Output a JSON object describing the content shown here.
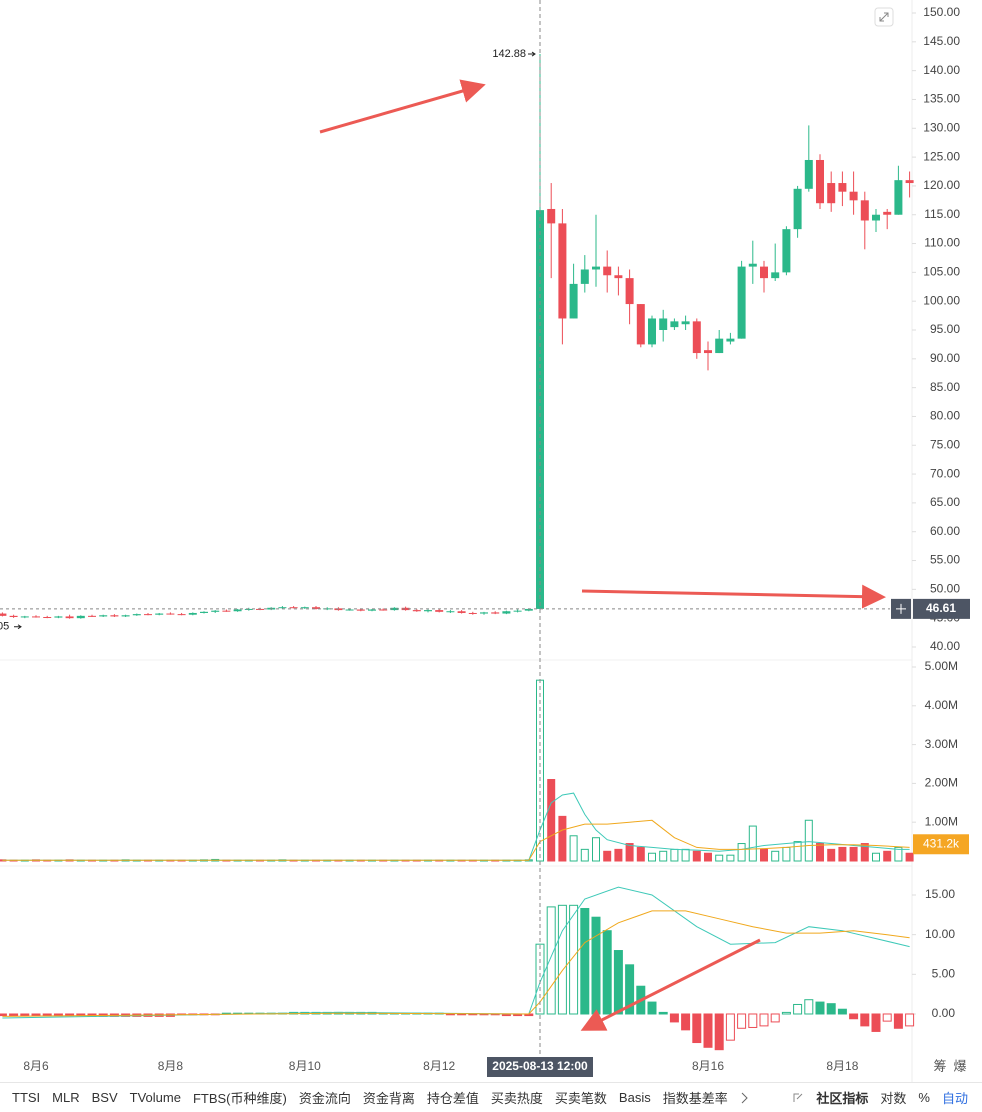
{
  "chart_data": [
    {
      "type": "candlestick",
      "up_color": "#2bb88a",
      "down_color": "#ec4d56",
      "ylim": [
        37.74,
        152.26
      ],
      "yticks": [
        {
          "value": 150,
          "label": "150.00"
        },
        {
          "value": 145,
          "label": "145.00"
        },
        {
          "value": 140,
          "label": "140.00"
        },
        {
          "value": 135,
          "label": "135.00"
        },
        {
          "value": 130,
          "label": "130.00"
        },
        {
          "value": 125,
          "label": "125.00"
        },
        {
          "value": 120,
          "label": "120.00"
        },
        {
          "value": 115,
          "label": "115.00"
        },
        {
          "value": 110,
          "label": "110.00"
        },
        {
          "value": 105,
          "label": "105.00"
        },
        {
          "value": 100,
          "label": "100.00"
        },
        {
          "value": 95,
          "label": "95.00"
        },
        {
          "value": 90,
          "label": "90.00"
        },
        {
          "value": 85,
          "label": "85.00"
        },
        {
          "value": 80,
          "label": "80.00"
        },
        {
          "value": 75,
          "label": "75.00"
        },
        {
          "value": 70,
          "label": "70.00"
        },
        {
          "value": 65,
          "label": "65.00"
        },
        {
          "value": 60,
          "label": "60.00"
        },
        {
          "value": 55,
          "label": "55.00"
        },
        {
          "value": 50,
          "label": "50.00"
        },
        {
          "value": 45,
          "label": "45.00"
        },
        {
          "value": 40,
          "label": "40.00"
        }
      ],
      "high": 142.88,
      "low_label": "05",
      "current_price": 46.61,
      "candles": [
        [
          45.8,
          46.0,
          45.3,
          45.4
        ],
        [
          45.4,
          45.6,
          45.05,
          45.2
        ],
        [
          45.2,
          45.4,
          45.0,
          45.3
        ],
        [
          45.3,
          45.5,
          45.1,
          45.2
        ],
        [
          45.2,
          45.4,
          45.0,
          45.1
        ],
        [
          45.1,
          45.4,
          45.0,
          45.3
        ],
        [
          45.3,
          45.6,
          44.9,
          45.0
        ],
        [
          45.0,
          45.5,
          44.9,
          45.4
        ],
        [
          45.4,
          45.6,
          45.2,
          45.3
        ],
        [
          45.3,
          45.6,
          45.2,
          45.5
        ],
        [
          45.5,
          45.7,
          45.2,
          45.3
        ],
        [
          45.3,
          45.6,
          45.2,
          45.5
        ],
        [
          45.5,
          45.8,
          45.4,
          45.7
        ],
        [
          45.7,
          45.9,
          45.5,
          45.6
        ],
        [
          45.6,
          45.9,
          45.5,
          45.8
        ],
        [
          45.8,
          46.0,
          45.6,
          45.7
        ],
        [
          45.7,
          45.9,
          45.5,
          45.6
        ],
        [
          45.6,
          46.0,
          45.5,
          45.9
        ],
        [
          45.9,
          46.2,
          45.8,
          46.1
        ],
        [
          46.1,
          46.4,
          45.9,
          46.3
        ],
        [
          46.3,
          46.5,
          46.1,
          46.2
        ],
        [
          46.2,
          46.6,
          46.1,
          46.5
        ],
        [
          46.5,
          46.8,
          46.3,
          46.6
        ],
        [
          46.6,
          46.8,
          46.4,
          46.5
        ],
        [
          46.5,
          46.9,
          46.4,
          46.8
        ],
        [
          46.8,
          47.1,
          46.6,
          46.9
        ],
        [
          46.9,
          47.1,
          46.7,
          46.8
        ],
        [
          46.8,
          47.0,
          46.6,
          46.9
        ],
        [
          46.9,
          47.1,
          46.5,
          46.6
        ],
        [
          46.6,
          46.9,
          46.4,
          46.7
        ],
        [
          46.7,
          46.9,
          46.3,
          46.4
        ],
        [
          46.4,
          46.7,
          46.3,
          46.5
        ],
        [
          46.5,
          46.7,
          46.2,
          46.3
        ],
        [
          46.3,
          46.6,
          46.2,
          46.5
        ],
        [
          46.5,
          46.7,
          46.3,
          46.4
        ],
        [
          46.4,
          46.9,
          46.3,
          46.8
        ],
        [
          46.8,
          47.0,
          46.3,
          46.4
        ],
        [
          46.4,
          46.6,
          46.1,
          46.2
        ],
        [
          46.2,
          46.5,
          46.0,
          46.4
        ],
        [
          46.4,
          46.6,
          46.0,
          46.1
        ],
        [
          46.1,
          46.4,
          45.9,
          46.2
        ],
        [
          46.2,
          46.4,
          45.8,
          45.9
        ],
        [
          45.9,
          46.1,
          45.6,
          45.8
        ],
        [
          45.8,
          46.1,
          45.6,
          46.0
        ],
        [
          46.0,
          46.2,
          45.7,
          45.8
        ],
        [
          45.8,
          46.3,
          45.7,
          46.2
        ],
        [
          46.2,
          46.5,
          46.0,
          46.3
        ],
        [
          46.3,
          46.7,
          46.2,
          46.6
        ],
        [
          46.6,
          142.88,
          46.5,
          115.8
        ],
        [
          116,
          120.5,
          104,
          113.5
        ],
        [
          113.5,
          116,
          92.5,
          97
        ],
        [
          97,
          106.5,
          97,
          103
        ],
        [
          103,
          108,
          101.5,
          105.5
        ],
        [
          105.5,
          115,
          102.5,
          106
        ],
        [
          106,
          108.8,
          101.5,
          104.5
        ],
        [
          104.5,
          106,
          101,
          104
        ],
        [
          104,
          105.5,
          96,
          99.5
        ],
        [
          99.5,
          99.5,
          92,
          92.5
        ],
        [
          92.5,
          97.5,
          92,
          97
        ],
        [
          95,
          98.5,
          93,
          97
        ],
        [
          95.5,
          97,
          95,
          96.5
        ],
        [
          96,
          97.5,
          95,
          96.5
        ],
        [
          96.5,
          97,
          90,
          91
        ],
        [
          91.5,
          93,
          88,
          91
        ],
        [
          91,
          95,
          91,
          93.5
        ],
        [
          93,
          94.5,
          92.5,
          93.5
        ],
        [
          93.5,
          107,
          93.5,
          106
        ],
        [
          106,
          110.5,
          103,
          106.5
        ],
        [
          106,
          107,
          101.5,
          104
        ],
        [
          104,
          110,
          103.5,
          105
        ],
        [
          105,
          113,
          104.5,
          112.5
        ],
        [
          112.5,
          120,
          111,
          119.5
        ],
        [
          119.5,
          130.5,
          119,
          124.5
        ],
        [
          124.5,
          125.5,
          116,
          117
        ],
        [
          120.5,
          122.5,
          115.5,
          117
        ],
        [
          120.5,
          122.5,
          116.5,
          119
        ],
        [
          119,
          122.5,
          115,
          117.5
        ],
        [
          117.5,
          119,
          109,
          114
        ],
        [
          114,
          116,
          112,
          115
        ],
        [
          115.5,
          116,
          112.5,
          115
        ],
        [
          115,
          123.5,
          115,
          121
        ],
        [
          121,
          122.5,
          118,
          120.5
        ]
      ]
    },
    {
      "type": "bar",
      "ylim": [
        0,
        5.18
      ],
      "yticks": [
        {
          "value": 5,
          "label": "5.00M"
        },
        {
          "value": 4,
          "label": "4.00M"
        },
        {
          "value": 3,
          "label": "3.00M"
        },
        {
          "value": 2,
          "label": "2.00M"
        },
        {
          "value": 1,
          "label": "1.00M"
        }
      ],
      "current": {
        "value": 0.4312,
        "label": "431.2k"
      },
      "values": [
        0.03,
        0.02,
        0.02,
        0.03,
        0.02,
        0.02,
        0.03,
        0.02,
        0.02,
        0.02,
        0.02,
        0.03,
        0.02,
        0.02,
        0.02,
        0.02,
        0.02,
        0.02,
        0.03,
        0.04,
        0.02,
        0.02,
        0.02,
        0.02,
        0.02,
        0.03,
        0.02,
        0.02,
        0.02,
        0.02,
        0.02,
        0.02,
        0.02,
        0.02,
        0.02,
        0.02,
        0.02,
        0.02,
        0.02,
        0.02,
        0.02,
        0.02,
        0.02,
        0.02,
        0.02,
        0.02,
        0.02,
        0.03,
        4.66,
        2.1,
        1.15,
        0.65,
        0.3,
        0.6,
        0.25,
        0.3,
        0.45,
        0.35,
        0.2,
        0.25,
        0.3,
        0.3,
        0.25,
        0.2,
        0.15,
        0.15,
        0.45,
        0.9,
        0.3,
        0.25,
        0.35,
        0.5,
        1.05,
        0.45,
        0.3,
        0.35,
        0.35,
        0.45,
        0.2,
        0.25,
        0.35,
        0.2
      ],
      "series": [
        {
          "color": "#3ec9b8",
          "x": [
            0,
            47,
            48,
            49,
            50,
            51,
            52,
            53,
            54,
            56,
            58,
            60,
            62,
            64,
            66,
            68,
            70,
            72,
            74,
            76,
            78,
            80,
            81
          ],
          "values": [
            0.02,
            0.02,
            0.8,
            1.5,
            1.7,
            1.75,
            1.2,
            0.8,
            0.55,
            0.4,
            0.35,
            0.3,
            0.28,
            0.25,
            0.3,
            0.4,
            0.45,
            0.5,
            0.45,
            0.4,
            0.35,
            0.3,
            0.3
          ]
        },
        {
          "color": "#f0a81c",
          "x": [
            0,
            47,
            48,
            50,
            52,
            54,
            56,
            58,
            60,
            62,
            64,
            66,
            68,
            70,
            72,
            74,
            76,
            78,
            81
          ],
          "values": [
            0.02,
            0.02,
            0.5,
            0.8,
            0.95,
            0.95,
            1.0,
            1.05,
            0.6,
            0.35,
            0.3,
            0.3,
            0.32,
            0.35,
            0.4,
            0.42,
            0.42,
            0.4,
            0.35
          ]
        }
      ]
    },
    {
      "type": "macd",
      "ylim": [
        -4.54,
        17.9
      ],
      "yticks": [
        {
          "value": 15,
          "label": "15.00"
        },
        {
          "value": 10,
          "label": "10.00"
        },
        {
          "value": 5,
          "label": "5.00"
        },
        {
          "value": 0,
          "label": "0.00"
        }
      ],
      "values": [
        -0.2,
        -0.2,
        -0.2,
        -0.2,
        -0.2,
        -0.2,
        -0.2,
        -0.2,
        -0.3,
        -0.3,
        -0.3,
        -0.3,
        -0.3,
        -0.3,
        -0.3,
        -0.3,
        -0.1,
        -0.1,
        -0.1,
        -0.1,
        0.1,
        0.1,
        0.1,
        0.1,
        0.1,
        0.1,
        0.2,
        0.2,
        0.2,
        0.2,
        0.2,
        0.2,
        0.2,
        0.2,
        0.1,
        0.1,
        0.1,
        0.1,
        0.1,
        0.1,
        -0.1,
        -0.1,
        -0.1,
        -0.1,
        -0.1,
        -0.2,
        -0.2,
        -0.2,
        8.8,
        13.5,
        13.7,
        13.7,
        13.3,
        12.2,
        10.5,
        8,
        6.2,
        3.5,
        1.5,
        0.2,
        -1,
        -2,
        -3.6,
        -4.2,
        -4.5,
        -3.3,
        -1.8,
        -1.7,
        -1.5,
        -1,
        0.2,
        1.2,
        1.8,
        1.5,
        1.3,
        0.6,
        -0.6,
        -1.5,
        -2.2,
        -0.9,
        -1.8,
        -1.5
      ],
      "series": [
        {
          "color": "#3ec9b8",
          "x": [
            0,
            30,
            47,
            48,
            50,
            52,
            55,
            58,
            62,
            65,
            69,
            72,
            75,
            78,
            81
          ],
          "values": [
            -0.5,
            0.2,
            0,
            4,
            10.5,
            14.5,
            16,
            15,
            11,
            8.8,
            9,
            11,
            10.5,
            9.5,
            8.5
          ]
        },
        {
          "color": "#f0a81c",
          "x": [
            0,
            30,
            47,
            48,
            50,
            52,
            55,
            58,
            61,
            64,
            67,
            70,
            73,
            76,
            79,
            81
          ],
          "values": [
            -0.3,
            0.1,
            0,
            1.5,
            5.5,
            9,
            11.5,
            13,
            13,
            12,
            11,
            10.2,
            10.2,
            10.5,
            10,
            9.6
          ]
        }
      ],
      "xticks": [
        {
          "value": 3,
          "label": "8月6"
        },
        {
          "value": 15,
          "label": "8月8"
        },
        {
          "value": 27,
          "label": "8月10"
        },
        {
          "value": 39,
          "label": "8月12"
        },
        {
          "value": 63,
          "label": "8月16"
        },
        {
          "value": 75,
          "label": "8月18"
        }
      ],
      "crosshair": {
        "value": 48,
        "label": "2025-08-13 12:00"
      }
    }
  ],
  "side_labels": [
    "筹",
    "爆"
  ],
  "toolbar": {
    "indicators": [
      "TTSI",
      "MLR",
      "BSV",
      "TVolume",
      "FTBS(币种维度)",
      "资金流向",
      "资金背离",
      "持仓差值",
      "买卖热度",
      "买卖笔数",
      "Basis",
      "指数基差率"
    ],
    "right": [
      "社区指标",
      "对数",
      "%",
      "自动"
    ]
  }
}
